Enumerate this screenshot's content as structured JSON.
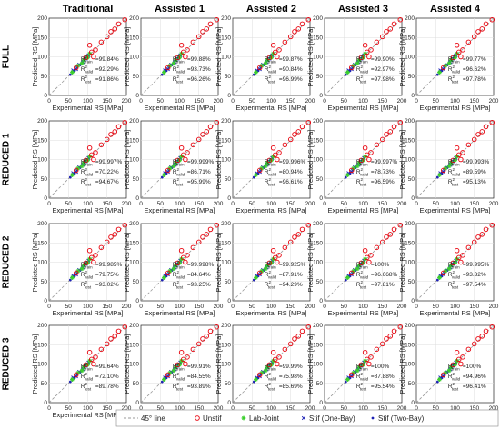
{
  "figure": {
    "columns": [
      "Traditional",
      "Assisted 1",
      "Assisted 2",
      "Assisted 3",
      "Assisted 4"
    ],
    "rows": [
      "FULL",
      "REDUCED 1",
      "REDUCED 2",
      "REDUCED 3"
    ],
    "xlabel": "Experimental RS [MPa]",
    "ylabel": "Predicted RS [MPa]",
    "ticks": [
      "0",
      "50",
      "100",
      "150",
      "200"
    ],
    "legend": [
      {
        "label": "45° line",
        "marker": "dash",
        "color": "#999999"
      },
      {
        "label": "Unstif",
        "marker": "circle",
        "color": "#e8000b"
      },
      {
        "label": "Lab-Joint",
        "marker": "star",
        "color": "#3ccf2e"
      },
      {
        "label": "Stif (One-Bay)",
        "marker": "x",
        "color": "#1f23b5"
      },
      {
        "label": "Stif (Two-Bay)",
        "marker": "dot",
        "color": "#1f23b5"
      }
    ],
    "colors": {
      "unstif": "#e8000b",
      "lab": "#3ccf2e",
      "stif": "#1f23b5",
      "line": "#999999"
    }
  },
  "chart_data": {
    "type": "scatter",
    "xlim": [
      0,
      200
    ],
    "ylim": [
      0,
      200
    ],
    "grid": true,
    "legend_position": "bottom",
    "series": [
      "Unstif",
      "Lab-Joint",
      "Stif (One-Bay)",
      "Stif (Two-Bay)"
    ],
    "metrics": [
      [
        {
          "train": "=99.84%",
          "valid": "=92.29%",
          "test": "=91.86%"
        },
        {
          "train": "=99.88%",
          "valid": "=93.73%",
          "test": "=96.26%"
        },
        {
          "train": "=99.87%",
          "valid": "=90.84%",
          "test": "=96.99%"
        },
        {
          "train": "=99.90%",
          "valid": "=92.97%",
          "test": "=97.98%"
        },
        {
          "train": "=99.77%",
          "valid": "=96.62%",
          "test": "=97.78%"
        }
      ],
      [
        {
          "train": "=99.997%",
          "valid": "=70.22%",
          "test": "=94.67%"
        },
        {
          "train": "=99.999%",
          "valid": "=86.71%",
          "test": "=95.99%"
        },
        {
          "train": "=99.996%",
          "valid": "=80.94%",
          "test": "=96.61%"
        },
        {
          "train": "=99.997%",
          "valid": "=78.73%",
          "test": "=96.59%"
        },
        {
          "train": "=99.993%",
          "valid": "=89.59%",
          "test": "=95.13%"
        }
      ],
      [
        {
          "train": "=99.985%",
          "valid": "=79.75%",
          "test": "=93.02%"
        },
        {
          "train": "=99.998%",
          "valid": "=84.64%",
          "test": "=93.25%"
        },
        {
          "train": "=99.925%",
          "valid": "=87.91%",
          "test": "=94.29%"
        },
        {
          "train": "=100%",
          "valid": "=96.668%",
          "test": "=97.81%"
        },
        {
          "train": "=99.995%",
          "valid": "=93.32%",
          "test": "=97.54%"
        }
      ],
      [
        {
          "train": "=99.64%",
          "valid": "=72.10%",
          "test": "=89.78%"
        },
        {
          "train": "=99.91%",
          "valid": "=84.55%",
          "test": "=93.89%"
        },
        {
          "train": "=99.99%",
          "valid": "=75.98%",
          "test": "=85.69%"
        },
        {
          "train": "=100%",
          "valid": "=87.88%",
          "test": "=95.54%"
        },
        {
          "train": "=100%",
          "valid": "=94.96%",
          "test": "=96.41%"
        }
      ]
    ],
    "points": {
      "unstif": [
        [
          70,
          72
        ],
        [
          95,
          98
        ],
        [
          110,
          112
        ],
        [
          120,
          118
        ],
        [
          135,
          138
        ],
        [
          150,
          152
        ],
        [
          160,
          165
        ],
        [
          170,
          172
        ],
        [
          180,
          185
        ],
        [
          196,
          196
        ],
        [
          105,
          130
        ],
        [
          115,
          100
        ]
      ],
      "lab_joint": [
        [
          60,
          60
        ],
        [
          75,
          77
        ],
        [
          85,
          83
        ],
        [
          90,
          92
        ],
        [
          100,
          98
        ],
        [
          105,
          108
        ]
      ],
      "stif_one_bay": [
        [
          62,
          65
        ],
        [
          70,
          68
        ],
        [
          78,
          80
        ],
        [
          88,
          86
        ],
        [
          95,
          95
        ],
        [
          102,
          104
        ]
      ],
      "stif_two_bay": [
        [
          55,
          54
        ],
        [
          60,
          62
        ],
        [
          66,
          64
        ],
        [
          72,
          74
        ],
        [
          80,
          79
        ],
        [
          86,
          88
        ],
        [
          92,
          90
        ],
        [
          98,
          100
        ]
      ]
    }
  }
}
